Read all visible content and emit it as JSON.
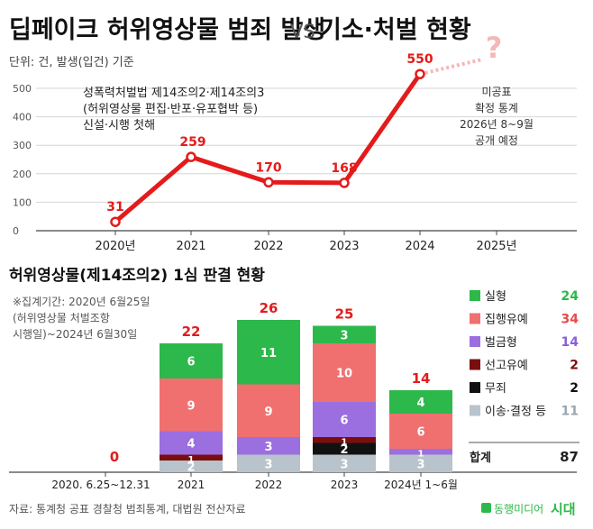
{
  "header": {
    "title": "딥페이크 허위영상물 범죄 발생",
    "vs": "VS",
    "title2": "기소·처벌 현황"
  },
  "top_unit": "단위: 건, 발생(입건) 기준",
  "top_annotation": [
    "성폭력처벌법 제14조의2·제14조의3",
    "(허위영상물 편집·반포·유포협박 등)",
    "신설·시행 첫해"
  ],
  "unknown": {
    "mark": "?",
    "lines": [
      "미공표",
      "확정 통계",
      "2026년 8~9월",
      "공개 예정"
    ]
  },
  "bottom_title": "허위영상물(제14조의2) 1심 판결 현황",
  "bottom_note": [
    "※집계기간: 2020년 6월25일",
    "(허위영상물 처벌조항",
    "시행일)~2024년 6월30일"
  ],
  "legend": [
    {
      "label": "실형",
      "value": "24",
      "color": "#2db84b",
      "value_color": "#2db84b"
    },
    {
      "label": "집행유예",
      "value": "34",
      "color": "#f07070",
      "value_color": "#e74a4a"
    },
    {
      "label": "벌금형",
      "value": "14",
      "color": "#9b6fe0",
      "value_color": "#8a5fd8"
    },
    {
      "label": "선고유예",
      "value": "2",
      "color": "#7a0e0e",
      "value_color": "#7a0e0e"
    },
    {
      "label": "무죄",
      "value": "2",
      "color": "#111111",
      "value_color": "#111111"
    },
    {
      "label": "이송·결정 등",
      "value": "11",
      "color": "#b9c3cb",
      "value_color": "#9aa6b0"
    }
  ],
  "total": {
    "label": "합계",
    "value": "87"
  },
  "source": "자료: 통계청 공표 경찰청 범죄통계, 대법원 전산자료",
  "logo": {
    "text": "동행미디어",
    "suffix": "시대"
  },
  "chart_data": [
    {
      "type": "line",
      "title": "딥페이크 허위영상물 범죄 발생",
      "ylim": [
        0,
        500
      ],
      "yticks": [
        0,
        100,
        200,
        300,
        400,
        500
      ],
      "categories": [
        "2020년",
        "2021",
        "2022",
        "2023",
        "2024",
        "2025년"
      ],
      "series": [
        {
          "values": [
            31,
            259,
            170,
            168,
            550,
            null
          ]
        }
      ],
      "value_labels": [
        "31",
        "259",
        "170",
        "168",
        "550"
      ],
      "color": "#e41b1b"
    },
    {
      "type": "bar",
      "title": "허위영상물(제14조의2) 1심 판결 현황",
      "categories": [
        "2020. 6.25~12.31",
        "2021",
        "2022",
        "2023",
        "2024년 1~6월"
      ],
      "totals": [
        0,
        22,
        26,
        25,
        14
      ],
      "stack_order_bottom_to_top": [
        "이송·결정 등",
        "무죄",
        "선고유예",
        "벌금형",
        "집행유예",
        "실형"
      ],
      "series": [
        {
          "name": "이송·결정 등",
          "values": [
            0,
            2,
            3,
            3,
            3
          ]
        },
        {
          "name": "무죄",
          "values": [
            0,
            0,
            0,
            2,
            0
          ]
        },
        {
          "name": "선고유예",
          "values": [
            0,
            1,
            0,
            1,
            0
          ]
        },
        {
          "name": "벌금형",
          "values": [
            0,
            4,
            3,
            6,
            1
          ]
        },
        {
          "name": "집행유예",
          "values": [
            0,
            9,
            9,
            10,
            6
          ]
        },
        {
          "name": "실형",
          "values": [
            0,
            6,
            11,
            3,
            4
          ]
        }
      ]
    }
  ]
}
